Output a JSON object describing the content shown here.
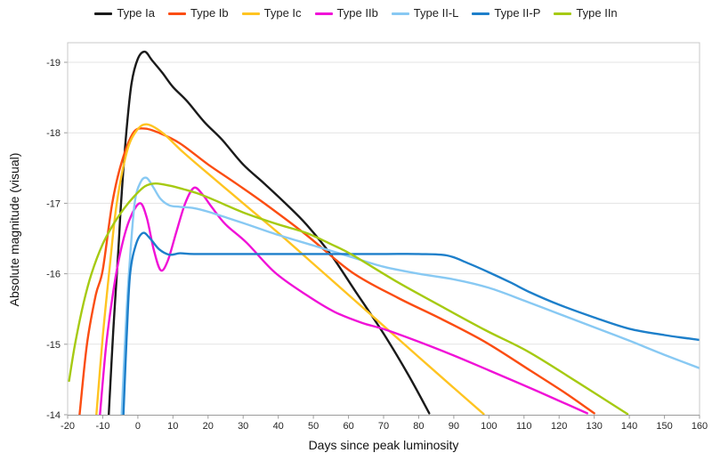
{
  "chart_data": {
    "type": "line",
    "title": "",
    "xlabel": "Days since peak luminosity",
    "ylabel": "Absolute magnitude (visual)",
    "legend_position": "top",
    "grid": "horizontal",
    "x_axis": {
      "min": -20,
      "max": 160,
      "ticks": [
        -20,
        -10,
        0,
        10,
        20,
        30,
        40,
        50,
        60,
        70,
        80,
        90,
        100,
        110,
        120,
        130,
        140,
        150,
        160
      ]
    },
    "y_axis": {
      "ticks": [
        -19,
        -18,
        -17,
        -16,
        -15,
        -14
      ],
      "inverted": true,
      "top_mag": -19.28,
      "bottom_mag": -13.99
    },
    "series": [
      {
        "name": "Type Ia",
        "color": "#1a1a1a",
        "points": [
          [
            -8.3,
            -14
          ],
          [
            -7,
            -15.2
          ],
          [
            -5.6,
            -16.3
          ],
          [
            -4.8,
            -17
          ],
          [
            -3.3,
            -18
          ],
          [
            -1.8,
            -18.7
          ],
          [
            0,
            -19.05
          ],
          [
            2,
            -19.15
          ],
          [
            4,
            -19.03
          ],
          [
            7,
            -18.85
          ],
          [
            10,
            -18.65
          ],
          [
            14,
            -18.45
          ],
          [
            19,
            -18.15
          ],
          [
            24,
            -17.9
          ],
          [
            30,
            -17.55
          ],
          [
            36,
            -17.28
          ],
          [
            42,
            -17
          ],
          [
            48,
            -16.7
          ],
          [
            55,
            -16.27
          ],
          [
            62,
            -15.75
          ],
          [
            70,
            -15.15
          ],
          [
            77,
            -14.57
          ],
          [
            83,
            -14.02
          ]
        ]
      },
      {
        "name": "Type Ib",
        "color": "#fb4d12",
        "points": [
          [
            -16.6,
            -14
          ],
          [
            -14.5,
            -15
          ],
          [
            -12,
            -15.7
          ],
          [
            -10,
            -16.05
          ],
          [
            -7.3,
            -17
          ],
          [
            -4.5,
            -17.6
          ],
          [
            -1.3,
            -18
          ],
          [
            1.8,
            -18.06
          ],
          [
            6,
            -18
          ],
          [
            12,
            -17.85
          ],
          [
            20,
            -17.55
          ],
          [
            28,
            -17.28
          ],
          [
            36,
            -17
          ],
          [
            48,
            -16.55
          ],
          [
            61,
            -16.02
          ],
          [
            74,
            -15.66
          ],
          [
            86,
            -15.37
          ],
          [
            99,
            -15.03
          ],
          [
            112,
            -14.62
          ],
          [
            122,
            -14.3
          ],
          [
            130,
            -14.02
          ]
        ]
      },
      {
        "name": "Type Ic",
        "color": "#ffc421",
        "points": [
          [
            -11.8,
            -14
          ],
          [
            -10,
            -15.1
          ],
          [
            -8,
            -16.1
          ],
          [
            -6,
            -17
          ],
          [
            -3.2,
            -17.72
          ],
          [
            -0.5,
            -18.02
          ],
          [
            2.5,
            -18.12
          ],
          [
            7,
            -18
          ],
          [
            13,
            -17.72
          ],
          [
            20,
            -17.42
          ],
          [
            30,
            -17
          ],
          [
            40,
            -16.58
          ],
          [
            50,
            -16.14
          ],
          [
            60,
            -15.7
          ],
          [
            70,
            -15.26
          ],
          [
            80,
            -14.82
          ],
          [
            90,
            -14.38
          ],
          [
            98.5,
            -14.01
          ]
        ]
      },
      {
        "name": "Type IIb",
        "color": "#f011d7",
        "points": [
          [
            -10.8,
            -14
          ],
          [
            -9,
            -15
          ],
          [
            -7,
            -15.75
          ],
          [
            -5,
            -16.3
          ],
          [
            -2.5,
            -16.75
          ],
          [
            0.5,
            -17
          ],
          [
            2.5,
            -16.8
          ],
          [
            4.5,
            -16.35
          ],
          [
            6.5,
            -16.05
          ],
          [
            8.5,
            -16.18
          ],
          [
            11,
            -16.6
          ],
          [
            13.5,
            -17
          ],
          [
            16,
            -17.22
          ],
          [
            18.5,
            -17.12
          ],
          [
            21,
            -16.95
          ],
          [
            25,
            -16.7
          ],
          [
            31,
            -16.44
          ],
          [
            39,
            -16.02
          ],
          [
            48,
            -15.7
          ],
          [
            56,
            -15.46
          ],
          [
            64,
            -15.3
          ],
          [
            71,
            -15.2
          ],
          [
            86,
            -14.92
          ],
          [
            100,
            -14.63
          ],
          [
            114,
            -14.33
          ],
          [
            128,
            -14.02
          ]
        ]
      },
      {
        "name": "Type II-L",
        "color": "#88c9f3",
        "points": [
          [
            -4.6,
            -14
          ],
          [
            -3.6,
            -15.1
          ],
          [
            -2.4,
            -16.1
          ],
          [
            -0.9,
            -17
          ],
          [
            0.8,
            -17.3
          ],
          [
            2.5,
            -17.36
          ],
          [
            4.5,
            -17.22
          ],
          [
            6.5,
            -17.06
          ],
          [
            9,
            -16.97
          ],
          [
            12,
            -16.95
          ],
          [
            16,
            -16.93
          ],
          [
            20,
            -16.88
          ],
          [
            30,
            -16.72
          ],
          [
            40,
            -16.55
          ],
          [
            50,
            -16.4
          ],
          [
            60,
            -16.25
          ],
          [
            70,
            -16.1
          ],
          [
            80,
            -16
          ],
          [
            90,
            -15.92
          ],
          [
            100,
            -15.8
          ],
          [
            110,
            -15.62
          ],
          [
            120,
            -15.43
          ],
          [
            130,
            -15.24
          ],
          [
            140,
            -15.05
          ],
          [
            150,
            -14.85
          ],
          [
            160,
            -14.66
          ]
        ]
      },
      {
        "name": "Type II-P",
        "color": "#1d7fca",
        "points": [
          [
            -4.1,
            -14
          ],
          [
            -3.2,
            -15.1
          ],
          [
            -2.2,
            -16
          ],
          [
            -0.5,
            -16.42
          ],
          [
            1.5,
            -16.58
          ],
          [
            3.5,
            -16.5
          ],
          [
            6,
            -16.35
          ],
          [
            9,
            -16.27
          ],
          [
            12,
            -16.29
          ],
          [
            16,
            -16.28
          ],
          [
            25,
            -16.28
          ],
          [
            40,
            -16.28
          ],
          [
            55,
            -16.28
          ],
          [
            70,
            -16.28
          ],
          [
            80,
            -16.28
          ],
          [
            88,
            -16.26
          ],
          [
            94,
            -16.15
          ],
          [
            100,
            -16.02
          ],
          [
            106,
            -15.88
          ],
          [
            112,
            -15.73
          ],
          [
            120,
            -15.56
          ],
          [
            130,
            -15.38
          ],
          [
            140,
            -15.22
          ],
          [
            150,
            -15.13
          ],
          [
            160,
            -15.06
          ]
        ]
      },
      {
        "name": "Type IIn",
        "color": "#a6ca12",
        "points": [
          [
            -19.6,
            -14.48
          ],
          [
            -17.9,
            -15
          ],
          [
            -15.5,
            -15.58
          ],
          [
            -13.2,
            -16
          ],
          [
            -10,
            -16.42
          ],
          [
            -7,
            -16.7
          ],
          [
            -4,
            -16.92
          ],
          [
            -1,
            -17.1
          ],
          [
            2,
            -17.24
          ],
          [
            5,
            -17.28
          ],
          [
            9,
            -17.25
          ],
          [
            13,
            -17.2
          ],
          [
            17,
            -17.14
          ],
          [
            22,
            -17.04
          ],
          [
            30,
            -16.87
          ],
          [
            40,
            -16.7
          ],
          [
            48,
            -16.58
          ],
          [
            55,
            -16.42
          ],
          [
            61,
            -16.27
          ],
          [
            74,
            -15.88
          ],
          [
            86,
            -15.55
          ],
          [
            99,
            -15.2
          ],
          [
            111,
            -14.9
          ],
          [
            125,
            -14.47
          ],
          [
            139.5,
            -14.01
          ]
        ]
      }
    ]
  },
  "colors": {
    "grid": "#e3e3e3",
    "border": "#c9c9c9",
    "axis": "#9b9b9b",
    "tick_text": "#262626"
  }
}
